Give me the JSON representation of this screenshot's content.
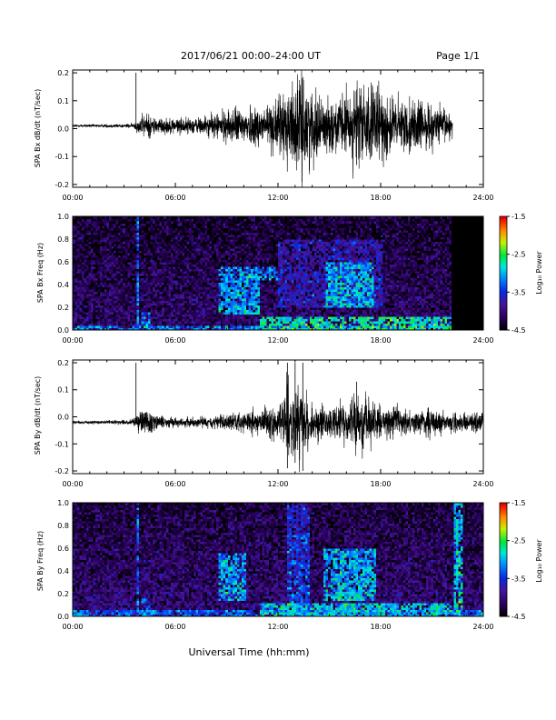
{
  "header": {
    "title": "2017/06/21  00:00–24:00 UT",
    "page": "Page 1/1"
  },
  "xlabel": "Universal Time (hh:mm)",
  "chart_data": [
    {
      "type": "line",
      "series_id": "bx_dbdt",
      "ylabel": "SPA Bx dB/dt (nT/sec)",
      "xlim": [
        0,
        24
      ],
      "ylim": [
        -0.21,
        0.21
      ],
      "xticks": [
        "00:00",
        "06:00",
        "12:00",
        "18:00",
        "24:00"
      ],
      "yticks": [
        {
          "v": -0.2,
          "label": "-0.2"
        },
        {
          "v": -0.1,
          "label": "-0.1"
        },
        {
          "v": 0.0,
          "label": "0.0"
        },
        {
          "v": 0.1,
          "label": "0.1"
        },
        {
          "v": 0.2,
          "label": "0.2"
        }
      ],
      "baseline": 0.01,
      "data_end_hour": 22.2,
      "envelope": {
        "x": [
          0,
          2,
          3.5,
          3.9,
          4.3,
          5,
          6,
          7,
          8,
          9,
          10,
          11,
          12,
          12.5,
          13,
          13.5,
          14,
          15,
          16,
          16.5,
          17,
          18,
          19,
          20,
          21,
          22,
          22.2
        ],
        "amplitude": [
          0.005,
          0.006,
          0.008,
          0.03,
          0.05,
          0.03,
          0.03,
          0.03,
          0.04,
          0.06,
          0.07,
          0.08,
          0.1,
          0.15,
          0.17,
          0.18,
          0.13,
          0.09,
          0.12,
          0.15,
          0.16,
          0.14,
          0.1,
          0.1,
          0.08,
          0.06,
          0.05
        ]
      },
      "spikes": [
        {
          "x": 3.7,
          "top": 0.2,
          "bottom": 0.01
        },
        {
          "x": 13.4,
          "top": 0.18,
          "bottom": -0.19
        },
        {
          "x": 16.6,
          "top": 0.14,
          "bottom": -0.13
        }
      ]
    },
    {
      "type": "heatmap",
      "series_id": "bx_spec",
      "ylabel": "SPA Bx Freq (Hz)",
      "xlim": [
        0,
        24
      ],
      "ylim": [
        0,
        1.0
      ],
      "xticks": [
        "00:00",
        "06:00",
        "12:00",
        "18:00",
        "24:00"
      ],
      "yticks": [
        {
          "v": 0.0,
          "label": "0.0"
        },
        {
          "v": 0.2,
          "label": "0.2"
        },
        {
          "v": 0.4,
          "label": "0.4"
        },
        {
          "v": 0.6,
          "label": "0.6"
        },
        {
          "v": 0.8,
          "label": "0.8"
        },
        {
          "v": 1.0,
          "label": "1.0"
        }
      ],
      "colorbar": {
        "label": "Log₁₀ Power",
        "range": [
          -4.5,
          -1.5
        ],
        "ticks": [
          {
            "v": -1.5,
            "label": "-1.5"
          },
          {
            "v": -2.5,
            "label": "-2.5"
          },
          {
            "v": -3.5,
            "label": "-3.5"
          },
          {
            "v": -4.5,
            "label": "-4.5"
          }
        ]
      },
      "no_data_from_hour": 22.2,
      "background_log_power": -4.1,
      "features": [
        {
          "t": [
            0,
            22.2
          ],
          "f": [
            0,
            0.04
          ],
          "level": -3.2,
          "note": "low-frequency band"
        },
        {
          "t": [
            3.7,
            3.75
          ],
          "f": [
            0,
            1.0
          ],
          "level": -3.1,
          "note": "vertical spike line"
        },
        {
          "t": [
            4.0,
            4.4
          ],
          "f": [
            0,
            0.15
          ],
          "level": -3.3
        },
        {
          "t": [
            8.5,
            10.8
          ],
          "f": [
            0.15,
            0.55
          ],
          "level": -3.0
        },
        {
          "t": [
            10.5,
            11.8
          ],
          "f": [
            0.45,
            0.55
          ],
          "level": -3.1
        },
        {
          "t": [
            11.0,
            22.0
          ],
          "f": [
            0,
            0.12
          ],
          "level": -2.7
        },
        {
          "t": [
            14.8,
            17.5
          ],
          "f": [
            0.2,
            0.6
          ],
          "level": -2.9
        },
        {
          "t": [
            12.0,
            18.0
          ],
          "f": [
            0.2,
            0.8
          ],
          "level": -3.6
        }
      ]
    },
    {
      "type": "line",
      "series_id": "by_dbdt",
      "ylabel": "SPA By dB/dt (nT/sec)",
      "xlim": [
        0,
        24
      ],
      "ylim": [
        -0.21,
        0.21
      ],
      "xticks": [
        "00:00",
        "06:00",
        "12:00",
        "18:00",
        "24:00"
      ],
      "yticks": [
        {
          "v": -0.2,
          "label": "-0.2"
        },
        {
          "v": -0.1,
          "label": "-0.1"
        },
        {
          "v": 0.0,
          "label": "0.0"
        },
        {
          "v": 0.1,
          "label": "0.1"
        },
        {
          "v": 0.2,
          "label": "0.2"
        }
      ],
      "baseline": -0.02,
      "data_end_hour": 24,
      "envelope": {
        "x": [
          0,
          2,
          3.5,
          3.9,
          4.3,
          5,
          6,
          7,
          8,
          9,
          10,
          11,
          12,
          12.5,
          13,
          13.5,
          14,
          15,
          16,
          16.5,
          17,
          18,
          19,
          20,
          21,
          22,
          23,
          24
        ],
        "amplitude": [
          0.006,
          0.007,
          0.01,
          0.04,
          0.06,
          0.03,
          0.02,
          0.02,
          0.02,
          0.03,
          0.04,
          0.05,
          0.08,
          0.14,
          0.17,
          0.13,
          0.08,
          0.06,
          0.07,
          0.12,
          0.11,
          0.07,
          0.06,
          0.05,
          0.05,
          0.04,
          0.04,
          0.03
        ]
      },
      "spikes": [
        {
          "x": 3.7,
          "top": 0.2,
          "bottom": -0.02
        },
        {
          "x": 12.55,
          "top": 0.2,
          "bottom": -0.19
        },
        {
          "x": 13.0,
          "top": 0.2,
          "bottom": -0.17
        },
        {
          "x": 13.45,
          "top": 0.2,
          "bottom": -0.2
        },
        {
          "x": 16.6,
          "top": 0.13,
          "bottom": -0.09
        }
      ]
    },
    {
      "type": "heatmap",
      "series_id": "by_spec",
      "ylabel": "SPA By Freq (Hz)",
      "xlim": [
        0,
        24
      ],
      "ylim": [
        0,
        1.0
      ],
      "xticks": [
        "00:00",
        "06:00",
        "12:00",
        "18:00",
        "24:00"
      ],
      "yticks": [
        {
          "v": 0.0,
          "label": "0.0"
        },
        {
          "v": 0.2,
          "label": "0.2"
        },
        {
          "v": 0.4,
          "label": "0.4"
        },
        {
          "v": 0.6,
          "label": "0.6"
        },
        {
          "v": 0.8,
          "label": "0.8"
        },
        {
          "v": 1.0,
          "label": "1.0"
        }
      ],
      "colorbar": {
        "label": "Log₁₀ Power",
        "range": [
          -4.5,
          -1.5
        ],
        "ticks": [
          {
            "v": -1.5,
            "label": "-1.5"
          },
          {
            "v": -2.5,
            "label": "-2.5"
          },
          {
            "v": -3.5,
            "label": "-3.5"
          },
          {
            "v": -4.5,
            "label": "-4.5"
          }
        ]
      },
      "no_data_from_hour": null,
      "background_log_power": -4.05,
      "features": [
        {
          "t": [
            0,
            24
          ],
          "f": [
            0,
            0.05
          ],
          "level": -3.3,
          "note": "low-frequency band"
        },
        {
          "t": [
            3.7,
            3.75
          ],
          "f": [
            0,
            1.0
          ],
          "level": -3.1,
          "note": "vertical spike line"
        },
        {
          "t": [
            4.0,
            4.4
          ],
          "f": [
            0,
            0.15
          ],
          "level": -3.3
        },
        {
          "t": [
            8.6,
            10.0
          ],
          "f": [
            0.15,
            0.55
          ],
          "level": -3.0
        },
        {
          "t": [
            12.5,
            13.7
          ],
          "f": [
            0,
            1.0
          ],
          "level": -3.4
        },
        {
          "t": [
            11.0,
            22.0
          ],
          "f": [
            0,
            0.12
          ],
          "level": -2.9
        },
        {
          "t": [
            14.6,
            17.6
          ],
          "f": [
            0.15,
            0.6
          ],
          "level": -2.9
        },
        {
          "t": [
            22.3,
            22.7
          ],
          "f": [
            0,
            1.0
          ],
          "level": -2.8,
          "note": "vertical band"
        }
      ]
    }
  ]
}
